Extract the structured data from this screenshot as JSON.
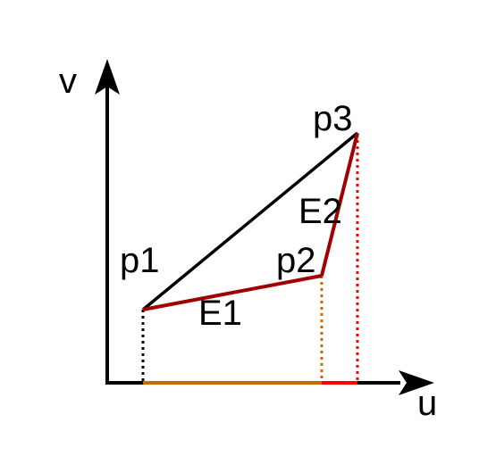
{
  "axes": {
    "x_label": "u",
    "y_label": "v"
  },
  "points": {
    "p1": "p1",
    "p2": "p2",
    "p3": "p3"
  },
  "edges": {
    "e1": "E1",
    "e2": "E2"
  },
  "colors": {
    "axis": "#000000",
    "chord": "#000000",
    "curve": "#a00000",
    "segment_e1": "#cc6a00",
    "segment_e2": "#ff0000",
    "background": "#ffffff"
  }
}
